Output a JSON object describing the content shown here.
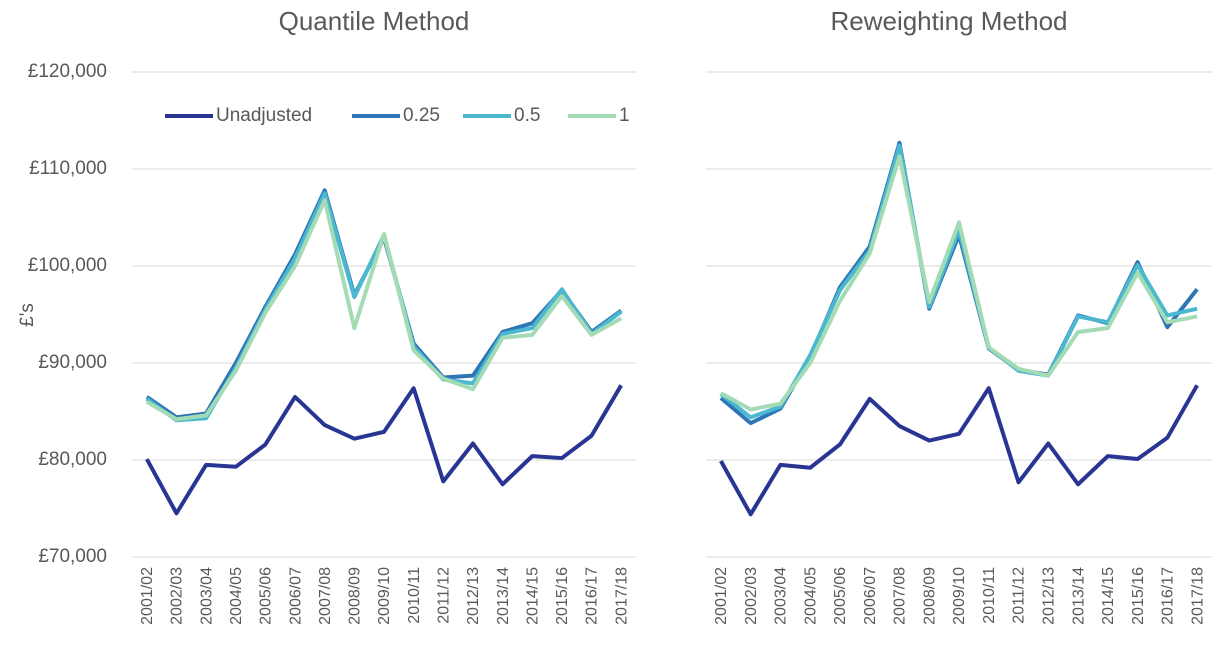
{
  "chart_data": [
    {
      "type": "line",
      "title": "Quantile Method",
      "y_label": "£'s",
      "legend": "top",
      "grid": true,
      "categories": [
        "2001/02",
        "2002/03",
        "2003/04",
        "2004/05",
        "2005/06",
        "2006/07",
        "2007/08",
        "2008/09",
        "2009/10",
        "2010/11",
        "2011/12",
        "2012/13",
        "2013/14",
        "2014/15",
        "2015/16",
        "2016/17",
        "2017/18"
      ],
      "ylim": [
        70000,
        120000
      ],
      "yticks": [
        {
          "value": 70000,
          "label": "£70,000"
        },
        {
          "value": 80000,
          "label": "£80,000"
        },
        {
          "value": 90000,
          "label": "£90,000"
        },
        {
          "value": 100000,
          "label": "£100,000"
        },
        {
          "value": 110000,
          "label": "£110,000"
        },
        {
          "value": 120000,
          "label": "£120,000"
        }
      ],
      "series": [
        {
          "name": "Unadjusted",
          "color": "#283593",
          "values": [
            80100,
            74500,
            79500,
            79300,
            81600,
            86500,
            83600,
            82200,
            82900,
            87400,
            77800,
            81700,
            77500,
            80400,
            80200,
            82500,
            87700
          ]
        },
        {
          "name": "0.25",
          "color": "#2e75b6",
          "values": [
            86500,
            84400,
            84800,
            90000,
            95800,
            101200,
            107800,
            97000,
            102900,
            92000,
            88500,
            88700,
            93200,
            94100,
            97500,
            93200,
            95400
          ]
        },
        {
          "name": "0.5",
          "color": "#4bb8d0",
          "values": [
            86300,
            84100,
            84300,
            89500,
            95500,
            100800,
            107500,
            96800,
            103200,
            91700,
            88300,
            87900,
            93000,
            93600,
            97600,
            93000,
            95300
          ]
        },
        {
          "name": "1",
          "color": "#a3dbb4",
          "values": [
            86000,
            84200,
            84600,
            89200,
            95200,
            100000,
            106800,
            93600,
            103300,
            91300,
            88400,
            87300,
            92600,
            92900,
            96900,
            92900,
            94600
          ]
        }
      ]
    },
    {
      "type": "line",
      "title": "Reweighting Method",
      "grid": true,
      "categories": [
        "2001/02",
        "2002/03",
        "2003/04",
        "2004/05",
        "2005/06",
        "2006/07",
        "2007/08",
        "2008/09",
        "2009/10",
        "2010/11",
        "2011/12",
        "2012/13",
        "2013/14",
        "2014/15",
        "2015/16",
        "2016/17",
        "2017/18"
      ],
      "ylim": [
        70000,
        120000
      ],
      "yticks": [
        70000,
        80000,
        90000,
        100000,
        110000,
        120000
      ],
      "series": [
        {
          "color": "#283593",
          "values": [
            79900,
            74400,
            79500,
            79200,
            81600,
            86300,
            83500,
            82000,
            82700,
            87400,
            77700,
            81700,
            77500,
            80400,
            80100,
            82300,
            87700
          ]
        },
        {
          "color": "#2e75b6",
          "values": [
            86400,
            83800,
            85300,
            90600,
            97800,
            102000,
            112700,
            95600,
            103200,
            91500,
            89300,
            88800,
            94900,
            94100,
            100400,
            93700,
            97600
          ]
        },
        {
          "color": "#4bb8d0",
          "values": [
            86800,
            84400,
            85500,
            90800,
            97500,
            101600,
            112400,
            95800,
            103700,
            91600,
            89200,
            88700,
            94800,
            94200,
            100100,
            94900,
            95600
          ]
        },
        {
          "color": "#a3dbb4",
          "values": [
            86900,
            85200,
            85800,
            90000,
            96400,
            101300,
            111300,
            96300,
            104500,
            91600,
            89400,
            88700,
            93200,
            93600,
            99300,
            94200,
            94800
          ]
        }
      ]
    }
  ]
}
